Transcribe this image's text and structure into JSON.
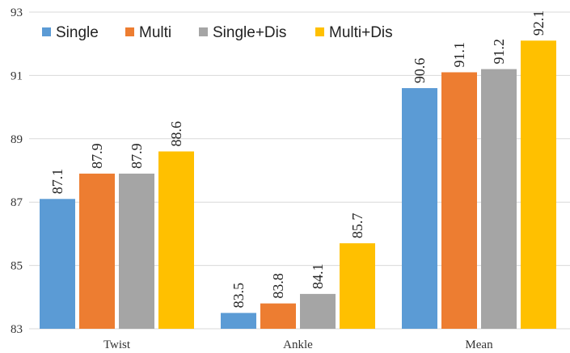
{
  "chart_data": {
    "type": "bar",
    "title": "",
    "xlabel": "",
    "ylabel": "",
    "categories": [
      "Twist",
      "Ankle",
      "Mean"
    ],
    "series": [
      {
        "name": "Single",
        "color": "#5B9BD5",
        "values": [
          87.1,
          83.5,
          90.6
        ]
      },
      {
        "name": "Multi",
        "color": "#ED7D31",
        "values": [
          87.9,
          83.8,
          91.1
        ]
      },
      {
        "name": "Single+Dis",
        "color": "#A5A5A5",
        "values": [
          87.9,
          84.1,
          91.2
        ]
      },
      {
        "name": "Multi+Dis",
        "color": "#FFC000",
        "values": [
          88.6,
          85.7,
          92.1
        ]
      }
    ],
    "value_labels": [
      [
        "87.1",
        "83.5",
        "90.6"
      ],
      [
        "87.9",
        "83.8",
        "91.1"
      ],
      [
        "87.9",
        "84.1",
        "91.2"
      ],
      [
        "88.6",
        "85.7",
        "92.1"
      ]
    ],
    "ylim": [
      83,
      93
    ],
    "yticks": [
      83,
      85,
      87,
      89,
      91,
      93
    ],
    "ytick_labels": [
      "83",
      "85",
      "87",
      "89",
      "91",
      "93"
    ],
    "grid": true,
    "legend_position": "top-left",
    "gridline_color": "#D9D9D9"
  }
}
